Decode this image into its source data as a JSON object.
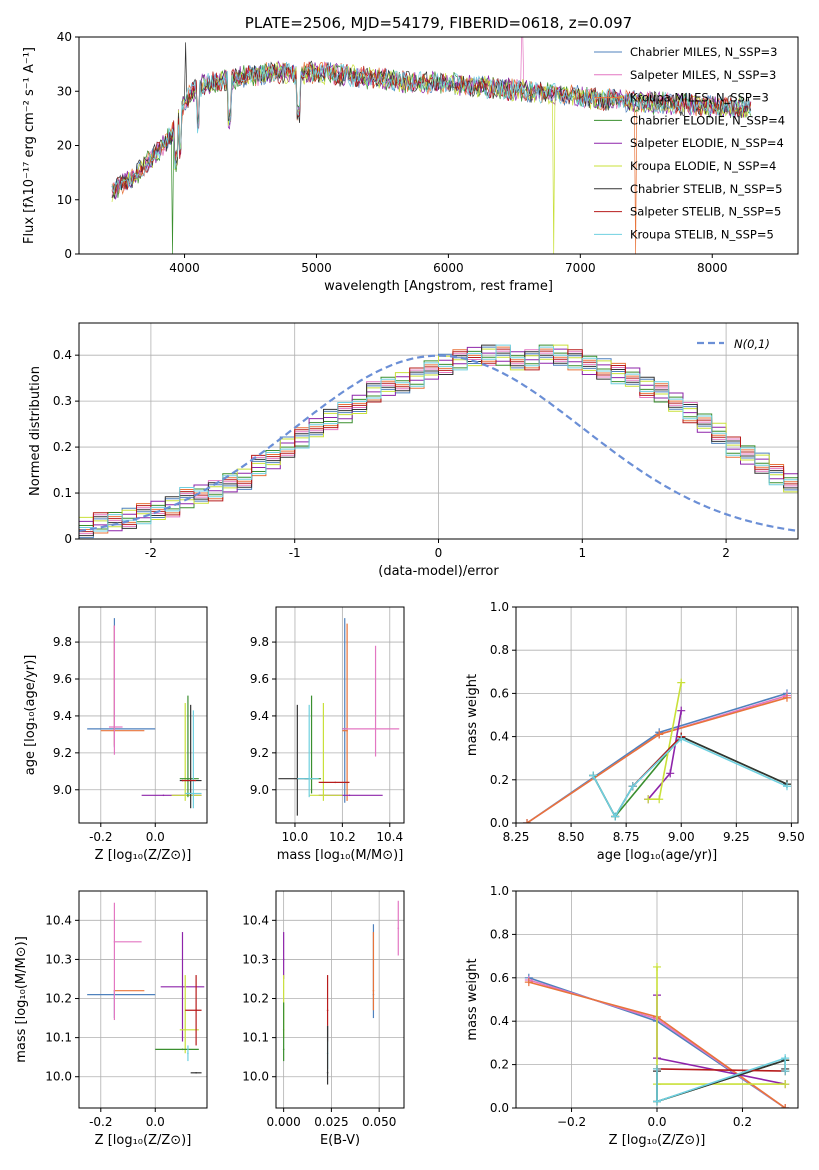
{
  "colors": {
    "Chabrier MILES": "#4f81bd",
    "Salpeter MILES": "#e377c2",
    "Kroupa MILES": "#e8743b",
    "Chabrier ELODIE": "#3a8f2f",
    "Salpeter ELODIE": "#8e24aa",
    "Kroupa ELODIE": "#c9e03a",
    "Chabrier STELIB": "#333333",
    "Salpeter STELIB": "#b71c1c",
    "Kroupa STELIB": "#6fd0e0"
  },
  "chart_data": [
    {
      "id": "spectrum",
      "type": "line",
      "title": "PLATE=2506, MJD=54179, FIBERID=0618, z=0.097",
      "xlabel": "wavelength [Angstrom, rest frame]",
      "ylabel": "Flux [fλ10⁻¹⁷ erg cm⁻² s⁻¹ A⁻¹]",
      "xlim": [
        3200,
        8650
      ],
      "ylim": [
        0,
        40
      ],
      "xticks": [
        4000,
        5000,
        6000,
        7000,
        8000
      ],
      "yticks": [
        0,
        10,
        20,
        30,
        40
      ],
      "grid": false,
      "legend_position": "top-right",
      "continuum": {
        "x": [
          3450,
          3500,
          3600,
          3700,
          3800,
          3900,
          4000,
          4100,
          4200,
          4300,
          4500,
          4700,
          4900,
          5000,
          5200,
          5400,
          5600,
          5800,
          6000,
          6200,
          6400,
          6600,
          6800,
          7000,
          7200,
          7400,
          7600,
          7800,
          8000,
          8200,
          8300
        ],
        "y": [
          11.5,
          12.5,
          14,
          16.5,
          19,
          22,
          28,
          31,
          31.5,
          32,
          33,
          33.5,
          33.2,
          33.5,
          33,
          32.5,
          32,
          31.5,
          31.5,
          31,
          30.5,
          30,
          29.5,
          29,
          28.5,
          28,
          27.8,
          27.5,
          27.2,
          27,
          27
        ]
      },
      "series": [
        {
          "name": "Chabrier MILES, N_SSP=3"
        },
        {
          "name": "Salpeter MILES, N_SSP=3"
        },
        {
          "name": "Kroupa MILES, N_SSP=3"
        },
        {
          "name": "Chabrier ELODIE, N_SSP=4"
        },
        {
          "name": "Salpeter ELODIE, N_SSP=4"
        },
        {
          "name": "Kroupa ELODIE, N_SSP=4"
        },
        {
          "name": "Chabrier STELIB, N_SSP=5"
        },
        {
          "name": "Salpeter STELIB, N_SSP=5"
        },
        {
          "name": "Kroupa STELIB, N_SSP=5"
        }
      ]
    },
    {
      "id": "residuals",
      "type": "line",
      "xlabel": "(data-model)/error",
      "ylabel": "Normed distribution",
      "xlim": [
        -2.5,
        2.5
      ],
      "ylim": [
        0,
        0.47
      ],
      "xticks": [
        -2,
        -1,
        0,
        1,
        2
      ],
      "yticks": [
        0.0,
        0.1,
        0.2,
        0.3,
        0.4
      ],
      "grid": true,
      "legend_position": "top-right",
      "reference": {
        "name": "N(0,1)",
        "mean": 0,
        "sigma": 1
      },
      "histogram": {
        "bin_width": 0.1,
        "x_start": -2.5,
        "values": [
          0.025,
          0.035,
          0.04,
          0.045,
          0.055,
          0.06,
          0.07,
          0.09,
          0.1,
          0.105,
          0.12,
          0.13,
          0.16,
          0.175,
          0.2,
          0.22,
          0.24,
          0.26,
          0.275,
          0.295,
          0.32,
          0.33,
          0.34,
          0.35,
          0.37,
          0.38,
          0.39,
          0.395,
          0.4,
          0.4,
          0.39,
          0.39,
          0.4,
          0.4,
          0.39,
          0.38,
          0.37,
          0.36,
          0.35,
          0.33,
          0.32,
          0.3,
          0.275,
          0.25,
          0.23,
          0.2,
          0.185,
          0.165,
          0.14,
          0.12,
          0.1,
          0.09,
          0.075,
          0.06,
          0.05,
          0.045,
          0.04,
          0.035,
          0.03,
          0.025
        ]
      }
    },
    {
      "id": "age_vs_Z",
      "type": "scatter",
      "xlabel": "Z [log₁₀(Z/Z⊙)]",
      "ylabel": "age  [log₁₀(age/yr)]",
      "xlim": [
        -0.28,
        0.19
      ],
      "ylim": [
        8.82,
        9.99
      ],
      "xticks": [
        "-0.2",
        "0.0"
      ],
      "xtick_values": [
        -0.2,
        0.0
      ],
      "yticks": [
        "9.0",
        "9.2",
        "9.4",
        "9.6",
        "9.8"
      ],
      "grid": true,
      "points": [
        {
          "series": "Chabrier MILES",
          "x": -0.15,
          "y": 9.33,
          "xerr": [
            0.1,
            0.15
          ],
          "yerr": [
            0.1,
            0.6
          ]
        },
        {
          "series": "Kroupa MILES",
          "x": -0.15,
          "y": 9.32,
          "xerr": [
            0.05,
            0.11
          ],
          "yerr": [
            0.08,
            0.57
          ]
        },
        {
          "series": "Salpeter MILES",
          "x": -0.15,
          "y": 9.34,
          "xerr": [
            0.02,
            0.03
          ],
          "yerr": [
            0.15,
            0.55
          ]
        },
        {
          "series": "Salpeter ELODIE",
          "x": 0.03,
          "y": 8.97,
          "xerr": [
            0.08,
            0.14
          ],
          "yerr": [
            0.0,
            0.0
          ]
        },
        {
          "series": "Kroupa ELODIE",
          "x": 0.11,
          "y": 8.97,
          "xerr": [
            0.05,
            0.06
          ],
          "yerr": [
            0.03,
            0.5
          ]
        },
        {
          "series": "Chabrier ELODIE",
          "x": 0.12,
          "y": 9.06,
          "xerr": [
            0.03,
            0.04
          ],
          "yerr": [
            0.1,
            0.45
          ]
        },
        {
          "series": "Chabrier STELIB",
          "x": 0.13,
          "y": 9.05,
          "xerr": [
            0.04,
            0.04
          ],
          "yerr": [
            0.15,
            0.41
          ]
        },
        {
          "series": "Kroupa STELIB",
          "x": 0.14,
          "y": 8.98,
          "xerr": [
            0.03,
            0.03
          ],
          "yerr": [
            0.08,
            0.45
          ]
        },
        {
          "series": "Salpeter STELIB",
          "x": 0.1,
          "y": 9.05,
          "xerr": [
            0.0,
            0.05
          ],
          "yerr": [
            0.0,
            0.0
          ]
        }
      ]
    },
    {
      "id": "age_vs_mass",
      "type": "scatter",
      "xlabel": "mass [log₁₀(M/M⊙)]",
      "ylabel": "",
      "xlim": [
        9.92,
        10.46
      ],
      "ylim": [
        8.82,
        9.99
      ],
      "xticks": [
        "10.0",
        "10.2",
        "10.4"
      ],
      "xtick_values": [
        10.0,
        10.2,
        10.4
      ],
      "yticks": [
        "9.0",
        "9.2",
        "9.4",
        "9.6",
        "9.8"
      ],
      "grid": true,
      "points": [
        {
          "series": "Chabrier MILES",
          "x": 10.21,
          "y": 9.33,
          "xerr": [
            0.01,
            0.01
          ],
          "yerr": [
            0.4,
            0.6
          ]
        },
        {
          "series": "Kroupa MILES",
          "x": 10.22,
          "y": 9.32,
          "xerr": [
            0.02,
            0.0
          ],
          "yerr": [
            0.38,
            0.58
          ]
        },
        {
          "series": "Salpeter MILES",
          "x": 10.34,
          "y": 9.33,
          "xerr": [
            0.14,
            0.1
          ],
          "yerr": [
            0.15,
            0.45
          ]
        },
        {
          "series": "Salpeter ELODIE",
          "x": 10.23,
          "y": 8.97,
          "xerr": [
            0.13,
            0.14
          ],
          "yerr": [
            0.0,
            0.0
          ]
        },
        {
          "series": "Kroupa ELODIE",
          "x": 10.12,
          "y": 8.97,
          "xerr": [
            0.06,
            0.08
          ],
          "yerr": [
            0.03,
            0.5
          ]
        },
        {
          "series": "Chabrier ELODIE",
          "x": 10.07,
          "y": 9.06,
          "xerr": [
            0.03,
            0.04
          ],
          "yerr": [
            0.08,
            0.45
          ]
        },
        {
          "series": "Chabrier STELIB",
          "x": 10.01,
          "y": 9.06,
          "xerr": [
            0.08,
            0.05
          ],
          "yerr": [
            0.2,
            0.4
          ]
        },
        {
          "series": "Kroupa STELIB",
          "x": 10.06,
          "y": 9.06,
          "xerr": [
            0.05,
            0.04
          ],
          "yerr": [
            0.1,
            0.4
          ]
        },
        {
          "series": "Salpeter STELIB",
          "x": 10.17,
          "y": 9.04,
          "xerr": [
            0.07,
            0.06
          ],
          "yerr": [
            0.0,
            0.0
          ]
        }
      ]
    },
    {
      "id": "mass_weight_vs_age",
      "type": "line",
      "xlabel": "age  [log₁₀(age/yr)]",
      "ylabel": "mass weight",
      "xlim": [
        8.25,
        9.53
      ],
      "ylim": [
        0.0,
        1.0
      ],
      "xticks": [
        "8.25",
        "8.50",
        "8.75",
        "9.00",
        "9.25",
        "9.50"
      ],
      "xtick_values": [
        8.25,
        8.5,
        8.75,
        9.0,
        9.25,
        9.5
      ],
      "yticks": [
        "0.0",
        "0.2",
        "0.4",
        "0.6",
        "0.8",
        "1.0"
      ],
      "grid": true,
      "series": [
        {
          "name": "Chabrier MILES",
          "x": [
            8.3,
            8.9,
            9.48
          ],
          "y": [
            0.0,
            0.42,
            0.6
          ]
        },
        {
          "name": "Salpeter MILES",
          "x": [
            8.3,
            8.9,
            9.48
          ],
          "y": [
            0.0,
            0.41,
            0.59
          ]
        },
        {
          "name": "Kroupa MILES",
          "x": [
            8.3,
            8.9,
            9.48
          ],
          "y": [
            0.0,
            0.41,
            0.58
          ]
        },
        {
          "name": "Chabrier ELODIE",
          "x": [
            8.6,
            8.7,
            9.0,
            9.48
          ],
          "y": [
            0.22,
            0.03,
            0.4,
            0.18
          ]
        },
        {
          "name": "Salpeter ELODIE",
          "x": [
            8.85,
            8.95,
            9.0
          ],
          "y": [
            0.11,
            0.23,
            0.52
          ]
        },
        {
          "name": "Kroupa ELODIE",
          "x": [
            8.85,
            8.9,
            9.0
          ],
          "y": [
            0.11,
            0.11,
            0.65
          ]
        },
        {
          "name": "Chabrier STELIB",
          "x": [
            8.6,
            8.7,
            8.78,
            9.0,
            9.48
          ],
          "y": [
            0.22,
            0.03,
            0.17,
            0.4,
            0.18
          ]
        },
        {
          "name": "Salpeter STELIB",
          "x": [
            8.78,
            9.0
          ],
          "y": [
            0.17,
            0.4
          ]
        },
        {
          "name": "Kroupa STELIB",
          "x": [
            8.6,
            8.7,
            8.78,
            9.0,
            9.48
          ],
          "y": [
            0.22,
            0.03,
            0.17,
            0.39,
            0.17
          ]
        }
      ]
    },
    {
      "id": "mass_vs_Z",
      "type": "scatter",
      "xlabel": "Z [log₁₀(Z/Z⊙)]",
      "ylabel": "mass [log₁₀(M/M⊙)]",
      "xlim": [
        -0.28,
        0.19
      ],
      "ylim": [
        9.92,
        10.475
      ],
      "xticks": [
        "-0.2",
        "0.0"
      ],
      "xtick_values": [
        -0.2,
        0.0
      ],
      "yticks": [
        "10.0",
        "10.1",
        "10.2",
        "10.3",
        "10.4"
      ],
      "grid": true,
      "points": [
        {
          "series": "Chabrier MILES",
          "x": -0.15,
          "y": 10.21,
          "xerr": [
            0.1,
            0.15
          ],
          "yerr": [
            0.06,
            0.01
          ]
        },
        {
          "series": "Kroupa MILES",
          "x": -0.15,
          "y": 10.22,
          "xerr": [
            0.0,
            0.11
          ],
          "yerr": [
            0.0,
            0.0
          ]
        },
        {
          "series": "Salpeter MILES",
          "x": -0.15,
          "y": 10.345,
          "xerr": [
            0.0,
            0.1
          ],
          "yerr": [
            0.2,
            0.1
          ]
        },
        {
          "series": "Salpeter ELODIE",
          "x": 0.1,
          "y": 10.23,
          "xerr": [
            0.08,
            0.08
          ],
          "yerr": [
            0.14,
            0.14
          ]
        },
        {
          "series": "Kroupa ELODIE",
          "x": 0.11,
          "y": 10.12,
          "xerr": [
            0.02,
            0.05
          ],
          "yerr": [
            0.06,
            0.14
          ]
        },
        {
          "series": "Chabrier ELODIE",
          "x": 0.1,
          "y": 10.07,
          "xerr": [
            0.1,
            0.06
          ],
          "yerr": [
            0.0,
            0.0
          ]
        },
        {
          "series": "Chabrier STELIB",
          "x": 0.15,
          "y": 10.01,
          "xerr": [
            0.02,
            0.02
          ],
          "yerr": [
            0.0,
            0.0
          ]
        },
        {
          "series": "Kroupa STELIB",
          "x": 0.12,
          "y": 10.06,
          "xerr": [
            0.0,
            0.0
          ],
          "yerr": [
            0.02,
            0.02
          ]
        },
        {
          "series": "Salpeter STELIB",
          "x": 0.15,
          "y": 10.17,
          "xerr": [
            0.04,
            0.02
          ],
          "yerr": [
            0.09,
            0.09
          ]
        }
      ]
    },
    {
      "id": "mass_vs_ebv",
      "type": "scatter",
      "xlabel": "E(B-V)",
      "ylabel": "",
      "xlim": [
        -0.004,
        0.063
      ],
      "ylim": [
        9.92,
        10.475
      ],
      "xticks": [
        "0.000",
        "0.025",
        "0.050"
      ],
      "xtick_values": [
        0.0,
        0.025,
        0.05
      ],
      "yticks": [
        "10.0",
        "10.1",
        "10.2",
        "10.3",
        "10.4"
      ],
      "grid": true,
      "points": [
        {
          "series": "Salpeter ELODIE",
          "x": 0.0,
          "y": 10.3,
          "yerr": [
            0.05,
            0.07
          ]
        },
        {
          "series": "Kroupa ELODIE",
          "x": 0.0,
          "y": 10.12,
          "yerr": [
            0.02,
            0.14
          ]
        },
        {
          "series": "Chabrier ELODIE",
          "x": 0.0,
          "y": 10.07,
          "yerr": [
            0.03,
            0.12
          ]
        },
        {
          "series": "Salpeter STELIB",
          "x": 0.023,
          "y": 10.17,
          "yerr": [
            0.08,
            0.09
          ]
        },
        {
          "series": "Kroupa STELIB",
          "x": 0.023,
          "y": 10.06,
          "yerr": [
            0.04,
            0.07
          ]
        },
        {
          "series": "Chabrier STELIB",
          "x": 0.023,
          "y": 10.01,
          "yerr": [
            0.03,
            0.12
          ]
        },
        {
          "series": "Chabrier MILES",
          "x": 0.047,
          "y": 10.21,
          "yerr": [
            0.06,
            0.18
          ]
        },
        {
          "series": "Kroupa MILES",
          "x": 0.047,
          "y": 10.22,
          "yerr": [
            0.05,
            0.15
          ]
        },
        {
          "series": "Salpeter MILES",
          "x": 0.06,
          "y": 10.38,
          "yerr": [
            0.07,
            0.07
          ]
        }
      ]
    },
    {
      "id": "mass_weight_vs_Z",
      "type": "line",
      "xlabel": "Z [log₁₀(Z/Z⊙)]",
      "ylabel": "mass weight",
      "xlim": [
        -0.33,
        0.33
      ],
      "ylim": [
        0.0,
        1.0
      ],
      "xticks": [
        "−0.2",
        "0.0",
        "0.2"
      ],
      "xtick_values": [
        -0.2,
        0.0,
        0.2
      ],
      "yticks": [
        "0.0",
        "0.2",
        "0.4",
        "0.6",
        "0.8",
        "1.0"
      ],
      "grid": true,
      "series": [
        {
          "name": "Chabrier MILES",
          "x": [
            -0.3,
            0.0,
            0.3
          ],
          "y": [
            0.6,
            0.4,
            0.0
          ]
        },
        {
          "name": "Salpeter MILES",
          "x": [
            -0.3,
            0.0,
            0.3
          ],
          "y": [
            0.59,
            0.41,
            0.0
          ]
        },
        {
          "name": "Kroupa MILES",
          "x": [
            -0.3,
            0.0,
            0.3
          ],
          "y": [
            0.58,
            0.42,
            0.0
          ]
        },
        {
          "name": "Chabrier ELODIE",
          "x": [
            0.0,
            0.0,
            0.3,
            0.3
          ],
          "y": [
            0.18,
            0.03,
            0.22,
            0.17
          ]
        },
        {
          "name": "Salpeter ELODIE",
          "x": [
            0.0,
            0.0,
            0.3
          ],
          "y": [
            0.52,
            0.23,
            0.11
          ]
        },
        {
          "name": "Kroupa ELODIE",
          "x": [
            0.0,
            0.0,
            0.3
          ],
          "y": [
            0.65,
            0.11,
            0.11
          ]
        },
        {
          "name": "Chabrier STELIB",
          "x": [
            0.0,
            0.0,
            0.3,
            0.3
          ],
          "y": [
            0.17,
            0.03,
            0.22,
            0.18
          ]
        },
        {
          "name": "Salpeter STELIB",
          "x": [
            0.0,
            0.3
          ],
          "y": [
            0.18,
            0.17
          ]
        },
        {
          "name": "Kroupa STELIB",
          "x": [
            0.0,
            0.0,
            0.3,
            0.3
          ],
          "y": [
            0.18,
            0.03,
            0.23,
            0.17
          ]
        }
      ]
    }
  ]
}
